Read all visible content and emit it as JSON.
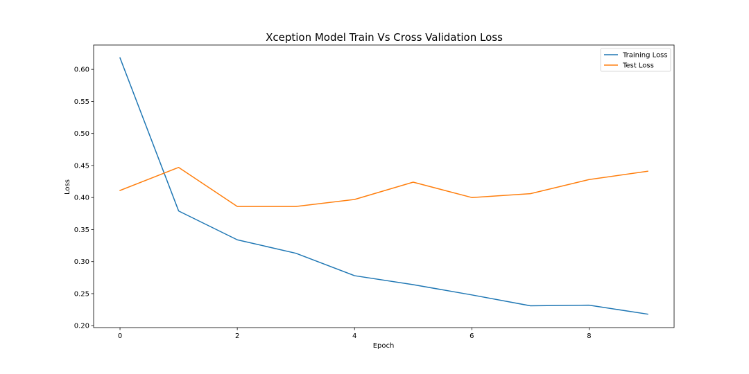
{
  "chart_data": {
    "type": "line",
    "title": "Xception Model Train Vs Cross Validation Loss",
    "xlabel": "Epoch",
    "ylabel": "Loss",
    "x": [
      0,
      1,
      2,
      3,
      4,
      5,
      6,
      7,
      8,
      9
    ],
    "xlim": [
      -0.45,
      9.45
    ],
    "ylim": [
      0.197,
      0.638
    ],
    "xticks": [
      0,
      2,
      4,
      6,
      8
    ],
    "yticks": [
      0.2,
      0.25,
      0.3,
      0.35,
      0.4,
      0.45,
      0.5,
      0.55,
      0.6
    ],
    "grid": false,
    "legend_position": "top-right",
    "series": [
      {
        "name": "Training Loss",
        "color": "#1f77b4",
        "values": [
          0.618,
          0.379,
          0.334,
          0.313,
          0.278,
          0.264,
          0.248,
          0.231,
          0.232,
          0.218
        ]
      },
      {
        "name": "Test Loss",
        "color": "#ff7f0e",
        "values": [
          0.411,
          0.447,
          0.386,
          0.386,
          0.397,
          0.424,
          0.4,
          0.406,
          0.428,
          0.441
        ]
      }
    ]
  }
}
